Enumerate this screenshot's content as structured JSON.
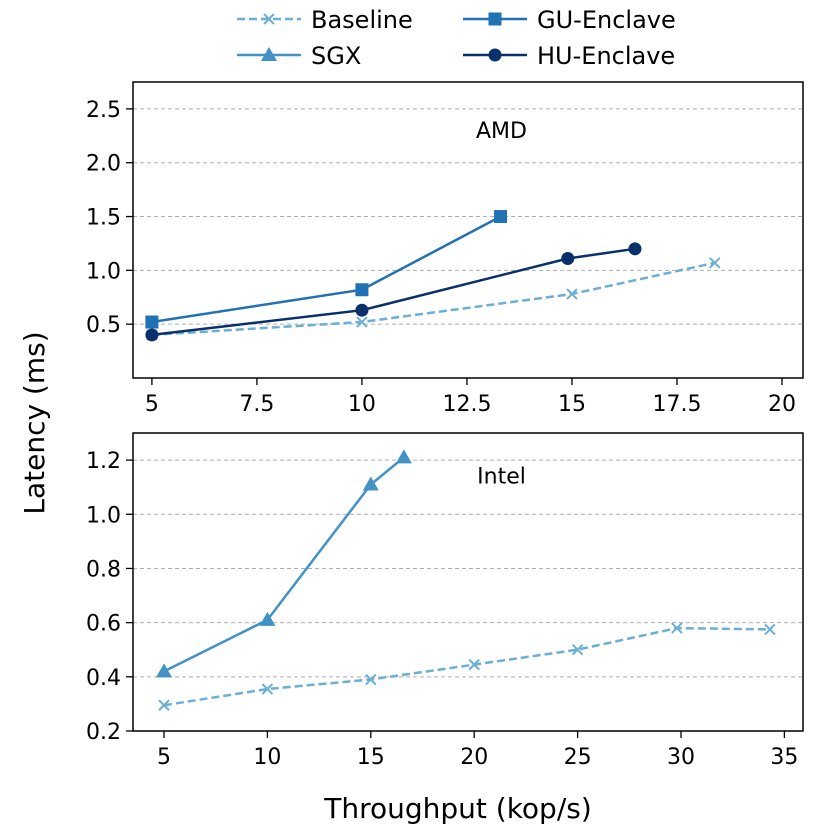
{
  "colors": {
    "Baseline": "#6baed6",
    "SGX": "#4292c6",
    "GU-Enclave": "#2171b5",
    "HU-Enclave": "#08306b"
  },
  "legend": {
    "position": "top-center",
    "items": [
      {
        "name": "Baseline",
        "marker": "x",
        "dash": true
      },
      {
        "name": "GU-Enclave",
        "marker": "square",
        "dash": false
      },
      {
        "name": "SGX",
        "marker": "triangle",
        "dash": false
      },
      {
        "name": "HU-Enclave",
        "marker": "circle",
        "dash": false
      }
    ]
  },
  "xlabel": "Throughput (kop/s)",
  "ylabel": "Latency (ms)",
  "chart_data": [
    {
      "type": "line",
      "annotation": "AMD",
      "grid": "horizontal",
      "xlim": [
        4.55,
        20.5
      ],
      "ylim": [
        0,
        2.75
      ],
      "xticks": [
        5,
        7.5,
        10,
        12.5,
        15,
        17.5,
        20
      ],
      "xtick_labels": [
        "5",
        "7.5",
        "10",
        "12.5",
        "15",
        "17.5",
        "20"
      ],
      "yticks": [
        0.5,
        1.0,
        1.5,
        2.0,
        2.5
      ],
      "ytick_labels": [
        "0.5",
        "1.0",
        "1.5",
        "2.0",
        "2.5"
      ],
      "series": [
        {
          "name": "Baseline",
          "x": [
            5,
            10,
            15,
            18.4
          ],
          "y": [
            0.4,
            0.52,
            0.78,
            1.07
          ]
        },
        {
          "name": "GU-Enclave",
          "x": [
            5,
            10,
            13.3
          ],
          "y": [
            0.52,
            0.82,
            1.5
          ]
        },
        {
          "name": "HU-Enclave",
          "x": [
            5,
            10,
            14.9,
            16.5
          ],
          "y": [
            0.4,
            0.63,
            1.11,
            1.2
          ]
        }
      ]
    },
    {
      "type": "line",
      "annotation": "Intel",
      "grid": "horizontal",
      "xlim": [
        3.5,
        35.9
      ],
      "ylim": [
        0.2,
        1.3
      ],
      "xticks": [
        5,
        10,
        15,
        20,
        25,
        30,
        35
      ],
      "xtick_labels": [
        "5",
        "10",
        "15",
        "20",
        "25",
        "30",
        "35"
      ],
      "yticks": [
        0.2,
        0.4,
        0.6,
        0.8,
        1.0,
        1.2
      ],
      "ytick_labels": [
        "0.2",
        "0.4",
        "0.6",
        "0.8",
        "1.0",
        "1.2"
      ],
      "series": [
        {
          "name": "Baseline",
          "x": [
            5,
            10,
            15,
            20,
            25,
            29.8,
            34.3
          ],
          "y": [
            0.295,
            0.355,
            0.39,
            0.445,
            0.5,
            0.58,
            0.575
          ]
        },
        {
          "name": "SGX",
          "x": [
            5,
            10,
            15,
            16.6
          ],
          "y": [
            0.42,
            0.61,
            1.11,
            1.21
          ]
        }
      ]
    }
  ]
}
